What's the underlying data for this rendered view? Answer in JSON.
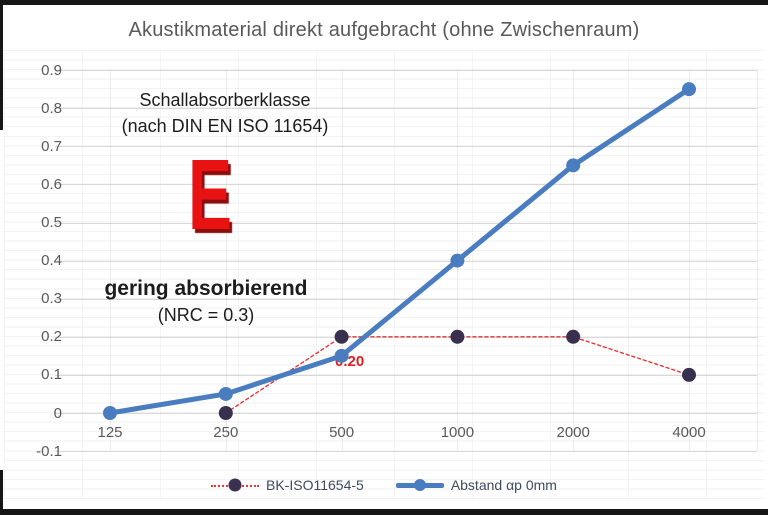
{
  "title": "Akustikmaterial direkt aufgebracht (ohne Zwischenraum)",
  "colors": {
    "background": "#ffffff",
    "title_text": "#595959",
    "axis_text": "#595959",
    "major_gridline": "#d8d8d8",
    "annotation_text": "#1c1c1c",
    "class_letter_red": "#e81212",
    "class_letter_shadow": "#8a0e0e",
    "point_label_red": "#e02020",
    "legend_text": "#3f4a5f",
    "photo_edge": "#161616"
  },
  "annotations": {
    "class_heading_line1": "Schallabsorberklasse",
    "class_heading_line2": "(nach DIN EN ISO 11654)",
    "class_letter": "E",
    "rating_text": "gering absorbierend",
    "rating_subtext": "(NRC = 0.3)"
  },
  "chart_data": {
    "type": "line",
    "title": "Akustikmaterial direkt aufgebracht (ohne Zwischenraum)",
    "categories": [
      "125",
      "250",
      "500",
      "1000",
      "2000",
      "4000"
    ],
    "series": [
      {
        "name": "BK-ISO11654-5",
        "values": [
          null,
          0,
          0.2,
          0.2,
          0.2,
          0.1
        ],
        "line_color": "#f03333",
        "marker_color": "#39304f",
        "line_style": "dotted",
        "line_width": 1.4,
        "marker_radius": 7
      },
      {
        "name": "Abstand  αp 0mm",
        "values": [
          0,
          0.05,
          0.15,
          0.4,
          0.65,
          0.85
        ],
        "line_color": "#4a7dc0",
        "marker_color": "#4a7dc0",
        "line_style": "solid",
        "line_width": 5,
        "marker_radius": 7
      }
    ],
    "data_labels": [
      {
        "series_index": 0,
        "category_index": 2,
        "text": "0.20"
      }
    ],
    "ylim": [
      -0.1,
      0.9
    ],
    "yticks": [
      "0.9",
      "0.8",
      "0.7",
      "0.6",
      "0.5",
      "0.4",
      "0.3",
      "0.2",
      "0.1",
      "0",
      "-0.1"
    ],
    "xlabel": "",
    "ylabel": "",
    "grid": true,
    "legend_position": "bottom"
  }
}
